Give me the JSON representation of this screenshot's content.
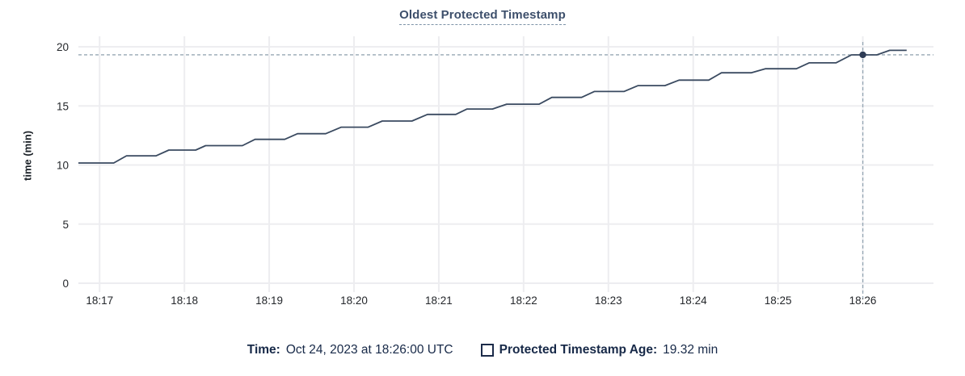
{
  "chart": {
    "title": "Oldest Protected Timestamp"
  },
  "y_axis_label": "time (min)",
  "legend": {
    "time_label": "Time:",
    "time_value": "Oct 24, 2023 at 18:26:00 UTC",
    "series_label": "Protected Timestamp Age:",
    "series_value": "19.32 min",
    "series_swatch_icon": "unchecked-square"
  },
  "chart_data": {
    "type": "line",
    "title": "Oldest Protected Timestamp",
    "xlabel": "",
    "ylabel": "time (min)",
    "ylim": [
      0,
      20
    ],
    "yticks": [
      0,
      5,
      10,
      15,
      20
    ],
    "xticks": [
      "18:17",
      "18:18",
      "18:19",
      "18:20",
      "18:21",
      "18:22",
      "18:23",
      "18:24",
      "18:25",
      "18:26"
    ],
    "x_domain": [
      "18:16:45",
      "18:26:50"
    ],
    "grid": true,
    "legend_position": "bottom",
    "series": [
      {
        "name": "Protected Timestamp Age",
        "unit": "min",
        "points": [
          [
            "18:16:45",
            10.17
          ],
          [
            "18:17:10",
            10.17
          ],
          [
            "18:17:19",
            10.78
          ],
          [
            "18:17:40",
            10.78
          ],
          [
            "18:17:49",
            11.26
          ],
          [
            "18:18:08",
            11.26
          ],
          [
            "18:18:15",
            11.64
          ],
          [
            "18:18:41",
            11.64
          ],
          [
            "18:18:50",
            12.17
          ],
          [
            "18:19:11",
            12.17
          ],
          [
            "18:19:20",
            12.65
          ],
          [
            "18:19:40",
            12.65
          ],
          [
            "18:19:51",
            13.2
          ],
          [
            "18:20:10",
            13.2
          ],
          [
            "18:20:20",
            13.72
          ],
          [
            "18:20:41",
            13.72
          ],
          [
            "18:20:52",
            14.28
          ],
          [
            "18:21:12",
            14.28
          ],
          [
            "18:21:20",
            14.74
          ],
          [
            "18:21:38",
            14.74
          ],
          [
            "18:21:48",
            15.15
          ],
          [
            "18:22:11",
            15.15
          ],
          [
            "18:22:20",
            15.72
          ],
          [
            "18:22:41",
            15.72
          ],
          [
            "18:22:50",
            16.22
          ],
          [
            "18:23:11",
            16.22
          ],
          [
            "18:23:21",
            16.72
          ],
          [
            "18:23:40",
            16.72
          ],
          [
            "18:23:50",
            17.18
          ],
          [
            "18:24:11",
            17.18
          ],
          [
            "18:24:20",
            17.8
          ],
          [
            "18:24:41",
            17.8
          ],
          [
            "18:24:51",
            18.14
          ],
          [
            "18:25:13",
            18.14
          ],
          [
            "18:25:22",
            18.64
          ],
          [
            "18:25:41",
            18.64
          ],
          [
            "18:25:52",
            19.32
          ],
          [
            "18:26:10",
            19.32
          ],
          [
            "18:26:19",
            19.7
          ],
          [
            "18:26:31",
            19.7
          ]
        ]
      }
    ],
    "crosshair": {
      "time": "18:26:00",
      "value": 19.32
    },
    "colors": {
      "line": "#3a4a60",
      "dot": "#2e3c55",
      "grid": "#ededf0",
      "crosshair": "#96a7b4",
      "tick_text": "#24272b",
      "title": "#3d4f6b",
      "legend_text": "#172948"
    }
  }
}
